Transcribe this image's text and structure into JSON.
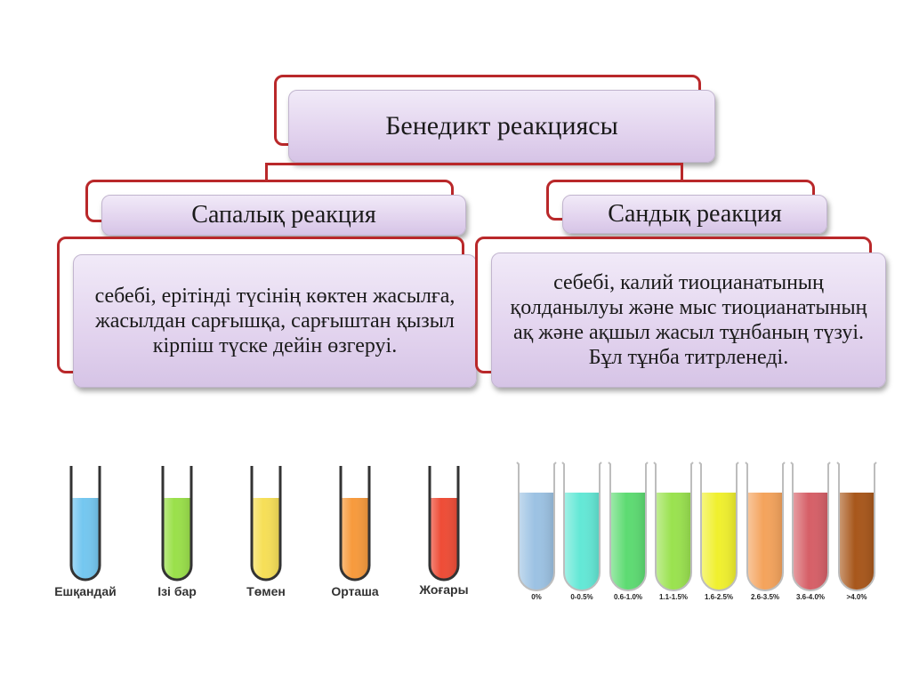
{
  "diagram": {
    "title": "Бенедикт реакциясы",
    "left": {
      "heading": "Сапалық реакция",
      "description": "себебі, ерітінді түсінің көктен жасылға, жасылдан сарғышқа, сарғыштан қызыл кірпіш түске дейін өзгеруі."
    },
    "right": {
      "heading": "Сандық реакция",
      "description": "себебі,  калий тиоцианатының қолданылуы және мыс тиоцианатының ақ және ақшыл жасыл тұнбаның түзуі. Бұл тұнба титрленеді."
    }
  },
  "tubes_left": [
    {
      "label": "Ешқандай",
      "color": "#74c7f0"
    },
    {
      "label": "Ізі бар",
      "color": "#9ae04a"
    },
    {
      "label": "Төмен",
      "color": "#f6df57"
    },
    {
      "label": "Орташа",
      "color": "#f79a3c"
    },
    {
      "label": "Жоғары",
      "color": "#ee4c36"
    }
  ],
  "tubes_right": [
    {
      "label": "0%",
      "color": "#9cc2e3"
    },
    {
      "label": "0-0.5%",
      "color": "#63e8d6"
    },
    {
      "label": "0.6-1.0%",
      "color": "#5ddb72"
    },
    {
      "label": "1.1-1.5%",
      "color": "#9ae24f"
    },
    {
      "label": "1.6-2.5%",
      "color": "#f0f02e"
    },
    {
      "label": "2.6-3.5%",
      "color": "#f4a35c"
    },
    {
      "label": "3.6-4.0%",
      "color": "#d65f67"
    },
    {
      "label": ">4.0%",
      "color": "#a8571b"
    }
  ]
}
